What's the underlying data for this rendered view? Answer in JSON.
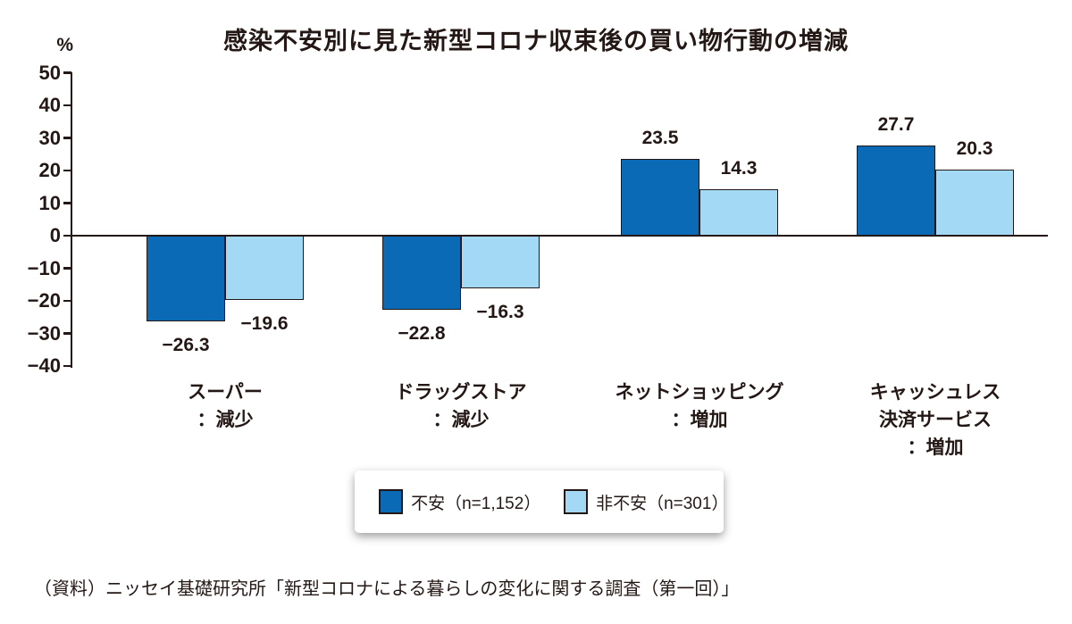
{
  "chart_data": {
    "type": "bar",
    "title": "感染不安別に見た新型コロナ収束後の買い物行動の増減",
    "unit_label": "%",
    "categories": [
      {
        "lines": [
          "スーパー",
          "：減少"
        ]
      },
      {
        "lines": [
          "ドラッグストア",
          "：減少"
        ]
      },
      {
        "lines": [
          "ネットショッピング",
          "：増加"
        ]
      },
      {
        "lines": [
          "キャッシュレス",
          "決済サービス",
          "：増加"
        ]
      }
    ],
    "series": [
      {
        "name": "不安（n=1,152）",
        "color": "#0a6ab6",
        "values": [
          -26.3,
          -22.8,
          23.5,
          27.7
        ]
      },
      {
        "name": "非不安（n=301）",
        "color": "#a3d9f5",
        "values": [
          -19.6,
          -16.3,
          14.3,
          20.3
        ]
      }
    ],
    "ylabel": "",
    "xlabel": "",
    "ylim": [
      -40,
      50
    ],
    "ytick_step": 10,
    "grid": false,
    "legend_position": "bottom"
  },
  "colors": {
    "text": "#231815",
    "axis": "#231815",
    "bar_border": "#231815",
    "anxious": "#0a6ab6",
    "not_anxious": "#a3d9f5"
  },
  "source_note": "（資料）ニッセイ基礎研究所「新型コロナによる暮らしの変化に関する調査（第一回）」"
}
